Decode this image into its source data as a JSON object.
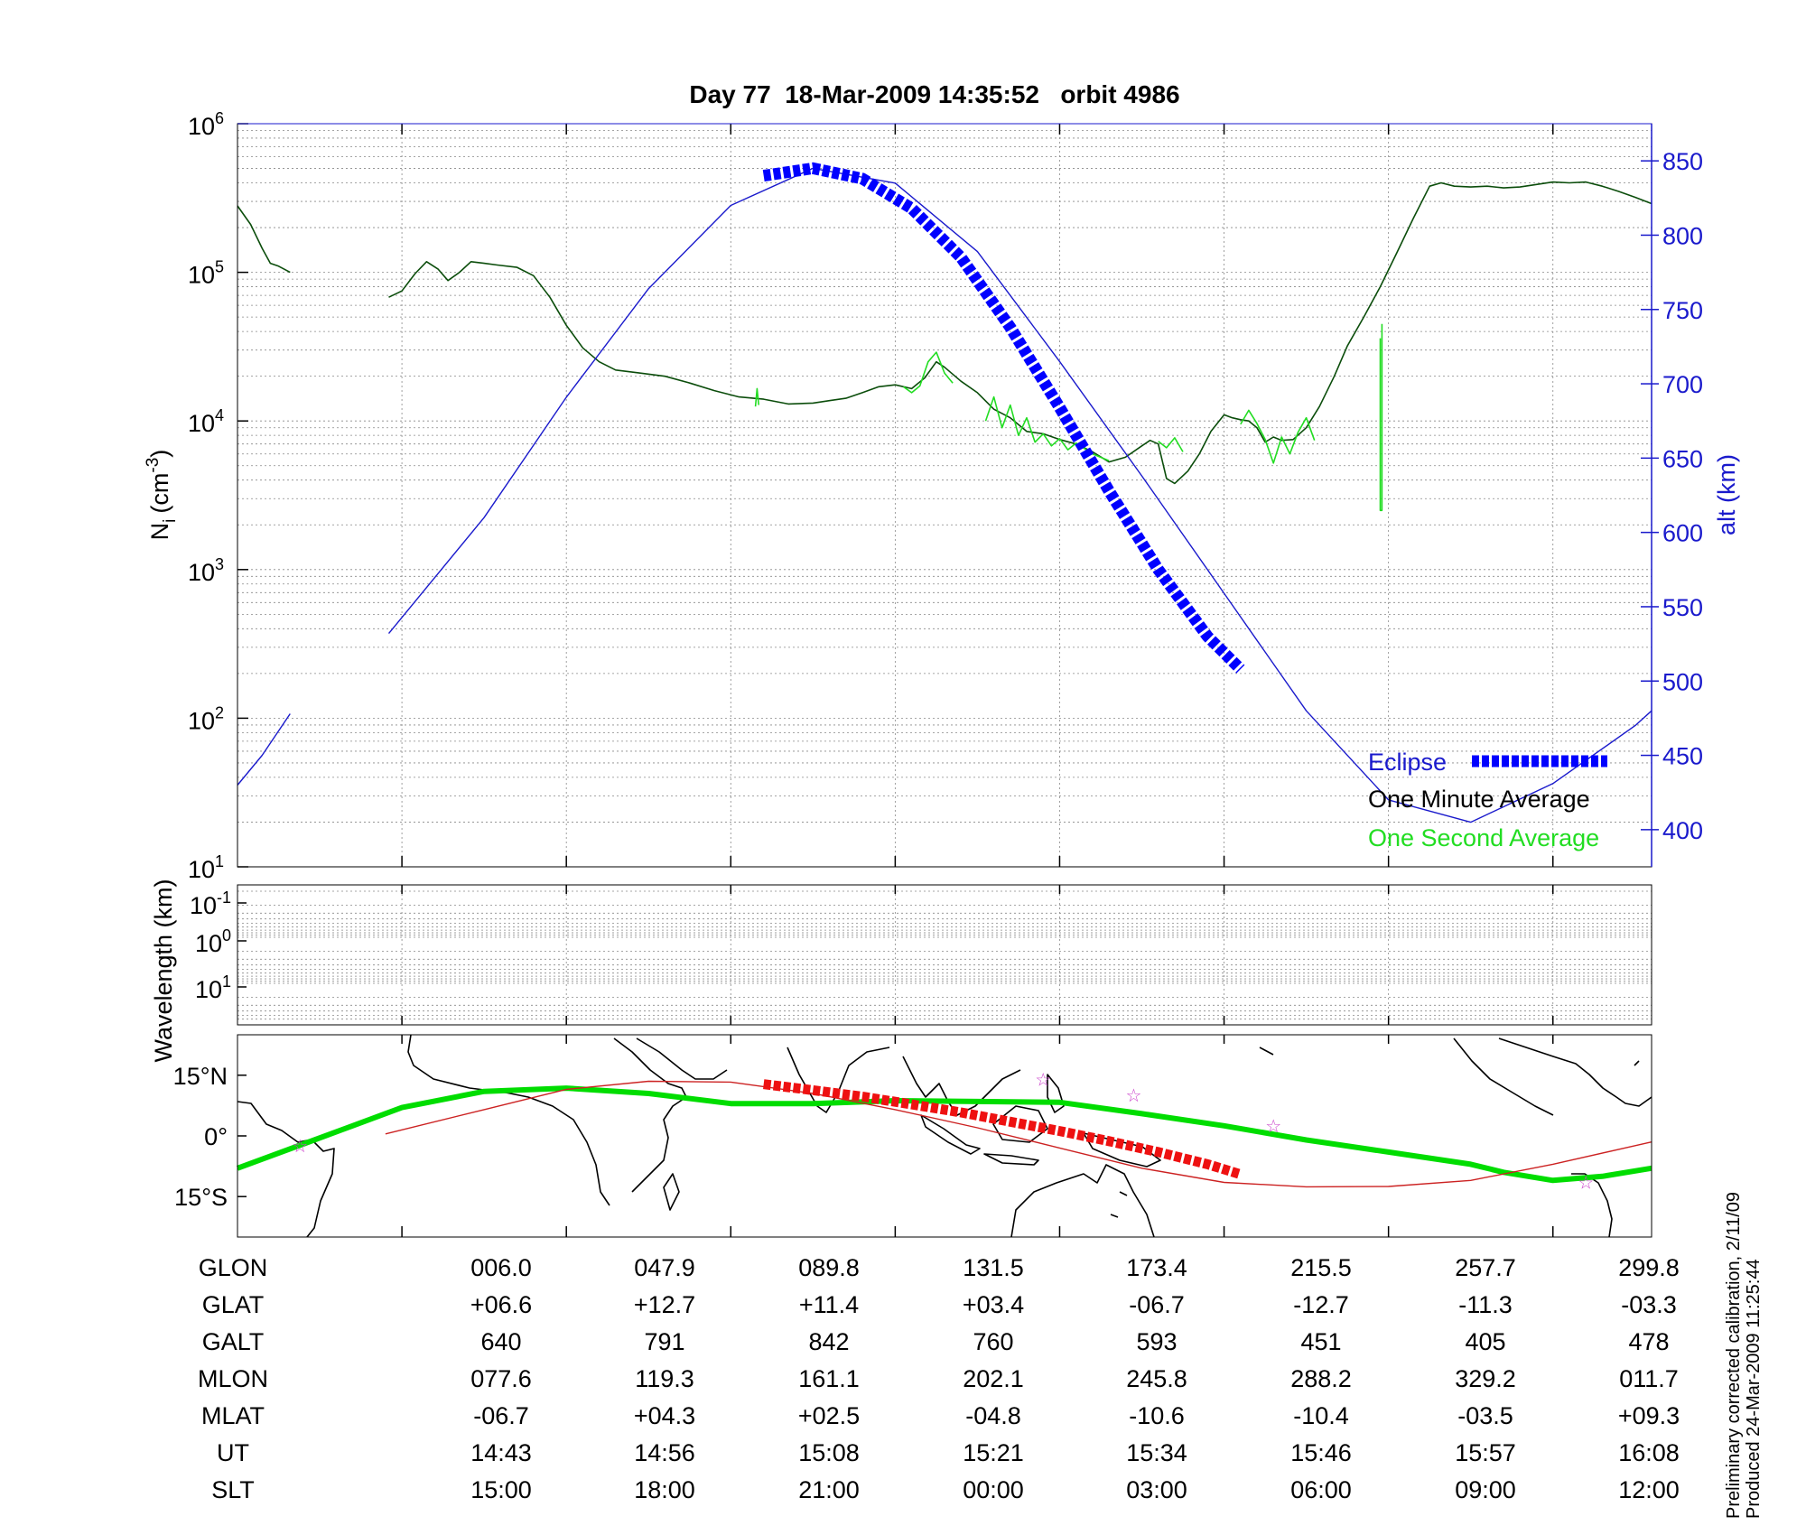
{
  "colors": {
    "eclipse": "#0000ff",
    "altitude": "#1a1acc",
    "one_minute": "#0b4d0b",
    "one_second": "#22dd22",
    "ground_track": "#00dd00",
    "orbit_track": "#cc2222",
    "eclipse_track": "#ee1111",
    "stars": "#cc44cc"
  },
  "chart_data": [
    {
      "type": "line",
      "title": "Day 77  18-Mar-2009 14:35:52   orbit 4986",
      "ylabel": "N",
      "ylabel_sub": "i",
      "ylabel_unit": "(cm",
      "ylabel_unit_sup": "-3",
      "ylabel_close": ")",
      "yscale": "log",
      "ylim": [
        10,
        1000000
      ],
      "yticks": [
        {
          "base": "10",
          "exp": "1",
          "v": 1
        },
        {
          "base": "10",
          "exp": "2",
          "v": 2
        },
        {
          "base": "10",
          "exp": "3",
          "v": 3
        },
        {
          "base": "10",
          "exp": "4",
          "v": 4
        },
        {
          "base": "10",
          "exp": "5",
          "v": 5
        },
        {
          "base": "10",
          "exp": "6",
          "v": 6
        }
      ],
      "y2label": "alt (km)",
      "y2lim": [
        375,
        875
      ],
      "y2ticks": [
        "400",
        "450",
        "500",
        "550",
        "600",
        "650",
        "700",
        "750",
        "800",
        "850"
      ],
      "xlim": [
        0,
        8.6
      ],
      "grid": true,
      "legend_position": "bottom-right",
      "legend": [
        "Eclipse",
        "One Minute Average",
        "One Second Average"
      ],
      "series": [
        {
          "name": "One Minute Average",
          "axis": "left",
          "segments": [
            {
              "x": [
                0,
                0.08,
                0.15,
                0.2,
                0.25,
                0.32
              ],
              "y": [
                280000,
                210000,
                145000,
                115000,
                110000,
                100000
              ]
            },
            {
              "x": [
                0.92,
                1.0,
                1.08,
                1.15,
                1.22,
                1.28,
                1.35,
                1.42,
                1.5,
                1.58,
                1.7,
                1.8,
                1.9,
                2.0,
                2.1,
                2.2,
                2.3,
                2.45,
                2.6,
                2.75,
                2.9,
                3.05,
                3.2,
                3.35,
                3.5,
                3.6,
                3.7,
                3.8,
                3.9,
                4.0,
                4.1,
                4.18,
                4.25,
                4.3,
                4.4,
                4.5,
                4.6,
                4.7,
                4.8,
                4.9,
                5.0,
                5.1,
                5.2,
                5.3,
                5.4,
                5.5,
                5.55,
                5.6,
                5.65,
                5.7,
                5.78,
                5.85,
                5.92,
                6.0,
                6.05,
                6.1,
                6.15,
                6.2,
                6.25,
                6.3,
                6.35,
                6.42,
                6.5,
                6.58,
                6.67,
                6.75,
                6.85,
                6.95,
                7.05,
                7.15,
                7.25,
                7.32,
                7.4,
                7.5,
                7.6,
                7.7,
                7.8,
                7.9,
                8.0,
                8.1,
                8.2,
                8.3,
                8.4,
                8.5,
                8.6
              ],
              "y": [
                68000,
                75000,
                98000,
                118000,
                105000,
                88000,
                100000,
                118000,
                115000,
                112000,
                108000,
                95000,
                68000,
                44000,
                31000,
                25000,
                22000,
                21000,
                20000,
                18000,
                16000,
                14500,
                14000,
                13000,
                13200,
                13700,
                14200,
                15500,
                17000,
                17500,
                16500,
                19500,
                25000,
                23000,
                18500,
                15500,
                12000,
                10500,
                8500,
                8200,
                7500,
                7000,
                6200,
                5300,
                5700,
                6800,
                7400,
                7000,
                4100,
                3800,
                4600,
                6000,
                8500,
                11000,
                10500,
                10200,
                10000,
                9000,
                7200,
                7800,
                7400,
                7500,
                9000,
                12500,
                20000,
                32000,
                50000,
                80000,
                135000,
                230000,
                380000,
                400000,
                380000,
                375000,
                380000,
                370000,
                375000,
                390000,
                405000,
                400000,
                405000,
                380000,
                350000,
                320000,
                290000
              ]
            }
          ]
        },
        {
          "name": "One Second Average",
          "axis": "left",
          "segments": [
            {
              "x": [
                3.15,
                3.16,
                3.17
              ],
              "y": [
                12500,
                16500,
                12800
              ]
            },
            {
              "x": [
                4.05,
                4.1,
                4.15,
                4.2,
                4.25,
                4.3,
                4.35
              ],
              "y": [
                17000,
                15500,
                17200,
                25000,
                29000,
                21000,
                18000
              ]
            },
            {
              "x": [
                4.55,
                4.6,
                4.65,
                4.7,
                4.75,
                4.8,
                4.85,
                4.9,
                4.95,
                5.0,
                5.05,
                5.1,
                5.2,
                5.3
              ],
              "y": [
                10000,
                14500,
                9000,
                12800,
                8000,
                10500,
                7200,
                8200,
                6800,
                7600,
                6400,
                7100,
                6000,
                5400
              ]
            },
            {
              "x": [
                5.6,
                5.65,
                5.7,
                5.75
              ],
              "y": [
                7300,
                6600,
                7700,
                6200
              ]
            },
            {
              "x": [
                6.1,
                6.15,
                6.2,
                6.25,
                6.3,
                6.35,
                6.4,
                6.45,
                6.5,
                6.55
              ],
              "y": [
                9500,
                11800,
                9600,
                7500,
                5200,
                7800,
                6000,
                8400,
                10500,
                7400
              ]
            },
            {
              "x": [
                6.95,
                6.95,
                6.96,
                6.96
              ],
              "y": [
                36000,
                2500,
                2500,
                45000
              ]
            }
          ]
        },
        {
          "name": "alt",
          "axis": "right",
          "segments": [
            {
              "x": [
                0,
                0.15,
                0.32
              ],
              "y": [
                430,
                450,
                478
              ]
            },
            {
              "x": [
                0.92,
                1.5,
                2.0,
                2.5,
                3.0,
                3.5,
                4.0,
                4.5,
                5.0,
                5.5,
                6.0,
                6.5,
                7.0,
                7.5,
                8.0,
                8.5,
                8.6
              ],
              "y": [
                532,
                610,
                691,
                764,
                820,
                845,
                835,
                789,
                715,
                638,
                559,
                480,
                420,
                405,
                431,
                470,
                480
              ]
            }
          ]
        },
        {
          "name": "Eclipse",
          "axis": "right",
          "style": "thick-dashed",
          "x": [
            3.2,
            3.5,
            3.8,
            4.1,
            4.4,
            4.7,
            5.0,
            5.3,
            5.6,
            5.9,
            6.1
          ],
          "y": [
            840,
            845,
            838,
            818,
            785,
            738,
            684,
            628,
            575,
            530,
            508
          ]
        }
      ]
    },
    {
      "type": "heatmap",
      "ylabel": "Wavelength (km)",
      "yticks": [
        {
          "base": "10",
          "exp": "-1"
        },
        {
          "base": "10",
          "exp": "0"
        },
        {
          "base": "10",
          "exp": "1"
        }
      ]
    },
    {
      "type": "line",
      "title": "",
      "yticks": [
        "15°N",
        "0°",
        "15°S"
      ],
      "ylim": [
        -25,
        25
      ],
      "xlim": [
        0,
        8.6
      ],
      "series": [
        {
          "name": "ground track",
          "x": [
            0,
            0.4,
            0.7,
            1.0,
            1.5,
            2.0,
            2.5,
            3.0,
            3.5,
            4.0,
            4.5,
            5.0,
            5.5,
            6.0,
            6.5,
            7.0,
            7.5,
            7.7,
            8.0,
            8.3,
            8.6
          ],
          "y": [
            -8,
            -2,
            2.5,
            7,
            11,
            11.8,
            10.5,
            8,
            8,
            8.7,
            8.5,
            8.3,
            5.5,
            2.5,
            -1,
            -4,
            -7,
            -9,
            -11,
            -10,
            -8
          ]
        },
        {
          "name": "orbit track",
          "x": [
            0.9,
            1.5,
            2.0,
            2.5,
            3.0,
            3.5,
            4.0,
            4.5,
            5.0,
            5.5,
            6.0,
            6.5,
            7.0,
            7.5,
            8.0,
            8.6
          ],
          "y": [
            0.5,
            6.5,
            11.5,
            13.5,
            13.3,
            10.5,
            6.5,
            2,
            -3,
            -8,
            -11.5,
            -12.6,
            -12.5,
            -11,
            -7,
            -1.5
          ]
        },
        {
          "name": "eclipse track",
          "style": "thick-dashed",
          "x": [
            3.2,
            3.5,
            3.8,
            4.1,
            4.4,
            4.7,
            5.0,
            5.3,
            5.6,
            5.9,
            6.1
          ],
          "y": [
            12.8,
            11.3,
            9.7,
            7.8,
            5.8,
            3.5,
            1.2,
            -1.3,
            -4.0,
            -7.0,
            -9.5
          ]
        },
        {
          "name": "stars",
          "style": "markers",
          "x": [
            0.38,
            4.9,
            5.45,
            6.3,
            8.2
          ],
          "y": [
            -2.5,
            14,
            10,
            2.5,
            -11.5
          ]
        }
      ]
    }
  ],
  "orbit_table": {
    "rows": [
      {
        "label": "GLON",
        "values": [
          "006.0",
          "047.9",
          "089.8",
          "131.5",
          "173.4",
          "215.5",
          "257.7",
          "299.8"
        ]
      },
      {
        "label": "GLAT",
        "values": [
          "+06.6",
          "+12.7",
          "+11.4",
          "+03.4",
          "-06.7",
          "-12.7",
          "-11.3",
          "-03.3"
        ]
      },
      {
        "label": "GALT",
        "values": [
          "640",
          "791",
          "842",
          "760",
          "593",
          "451",
          "405",
          "478"
        ]
      },
      {
        "label": "MLON",
        "values": [
          "077.6",
          "119.3",
          "161.1",
          "202.1",
          "245.8",
          "288.2",
          "329.2",
          "011.7"
        ]
      },
      {
        "label": "MLAT",
        "values": [
          "-06.7",
          "+04.3",
          "+02.5",
          "-04.8",
          "-10.6",
          "-10.4",
          "-03.5",
          "+09.3"
        ]
      },
      {
        "label": "UT",
        "values": [
          "14:43",
          "14:56",
          "15:08",
          "15:21",
          "15:34",
          "15:46",
          "15:57",
          "16:08"
        ]
      },
      {
        "label": "SLT",
        "values": [
          "15:00",
          "18:00",
          "21:00",
          "00:00",
          "03:00",
          "06:00",
          "09:00",
          "12:00"
        ]
      }
    ]
  },
  "footnote": {
    "line1": "Preliminary corrected calibration, 2/11/09",
    "line2": "Produced 24-Mar-2009 11:25:44"
  }
}
